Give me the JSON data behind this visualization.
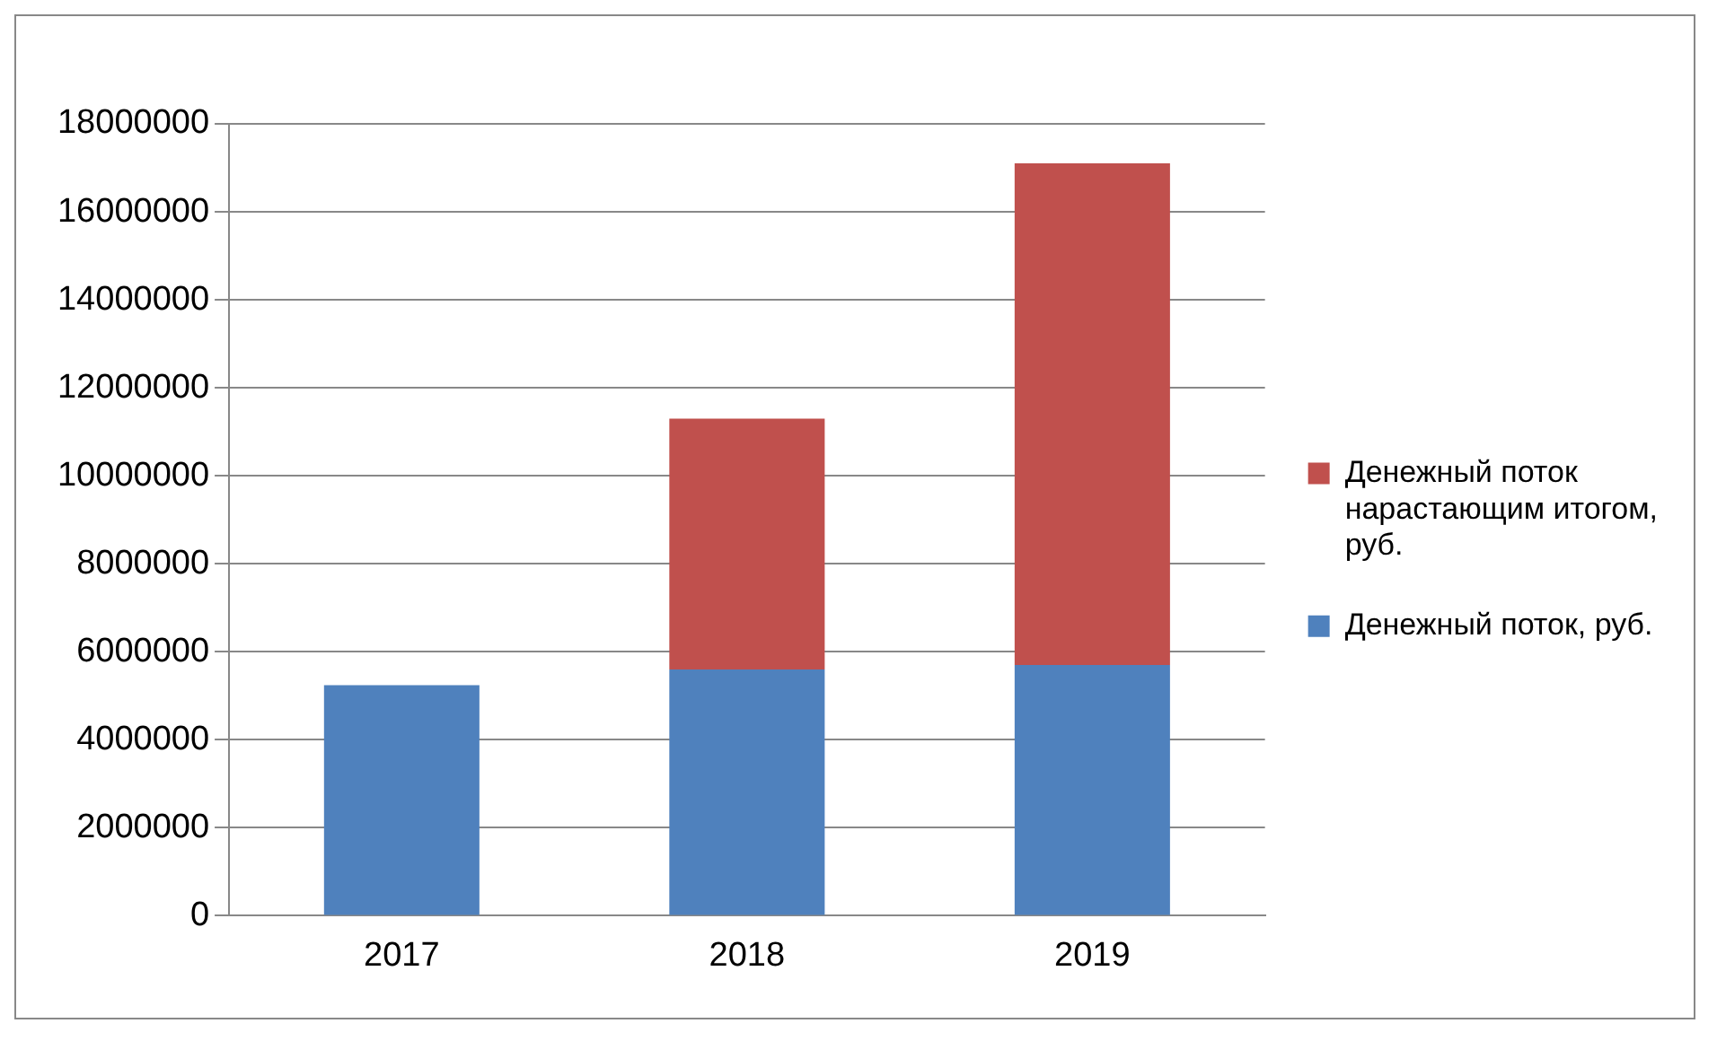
{
  "chart_data": {
    "type": "bar",
    "stacked": true,
    "categories": [
      "2017",
      "2018",
      "2019"
    ],
    "series": [
      {
        "name": "Денежный поток, руб.",
        "color": "#4f81bd",
        "values": [
          5240000,
          5600000,
          5700000
        ]
      },
      {
        "name": "Денежный поток нарастающим итогом, руб.",
        "color": "#c0504d",
        "values": [
          0,
          5700000,
          11400000
        ]
      }
    ],
    "ylim": [
      0,
      18000000
    ],
    "yticks": [
      0,
      2000000,
      4000000,
      6000000,
      8000000,
      10000000,
      12000000,
      14000000,
      16000000,
      18000000
    ],
    "grid": "y",
    "legend": "right"
  }
}
